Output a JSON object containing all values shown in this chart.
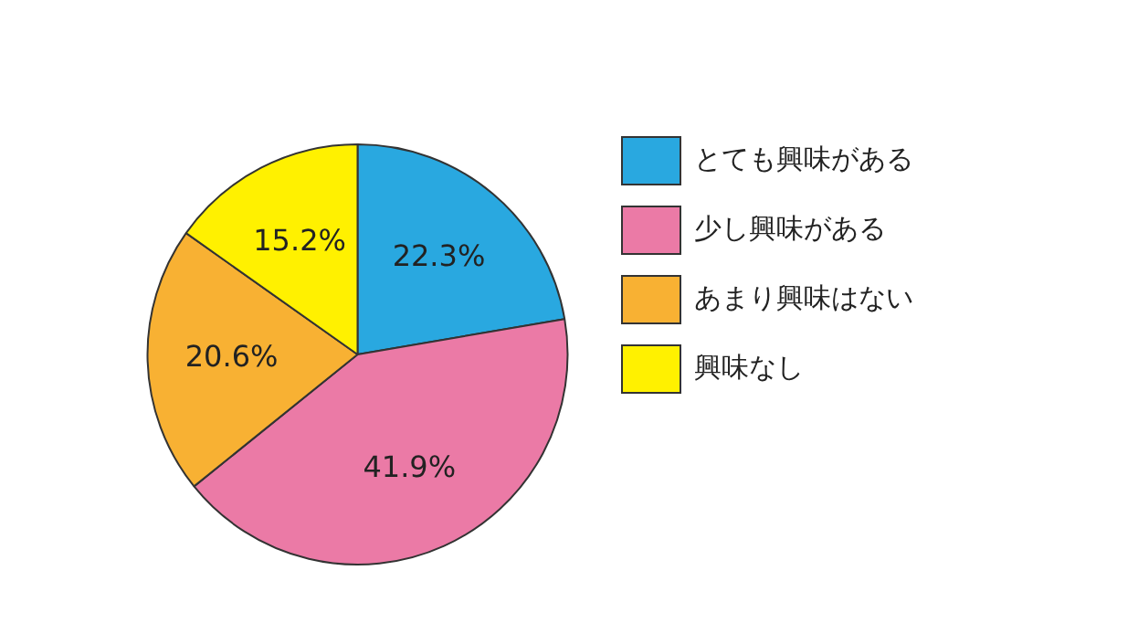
{
  "chart_data": {
    "type": "pie",
    "categories": [
      "とても興味がある",
      "少し興味がある",
      "あまり興味はない",
      "興味なし"
    ],
    "values": [
      22.3,
      41.9,
      20.6,
      15.2
    ],
    "colors": [
      "#29a8e0",
      "#eb7aa6",
      "#f8b133",
      "#fff100"
    ],
    "value_labels": [
      "22.3%",
      "41.9%",
      "20.6%",
      "15.2%"
    ],
    "legend": "top right"
  }
}
